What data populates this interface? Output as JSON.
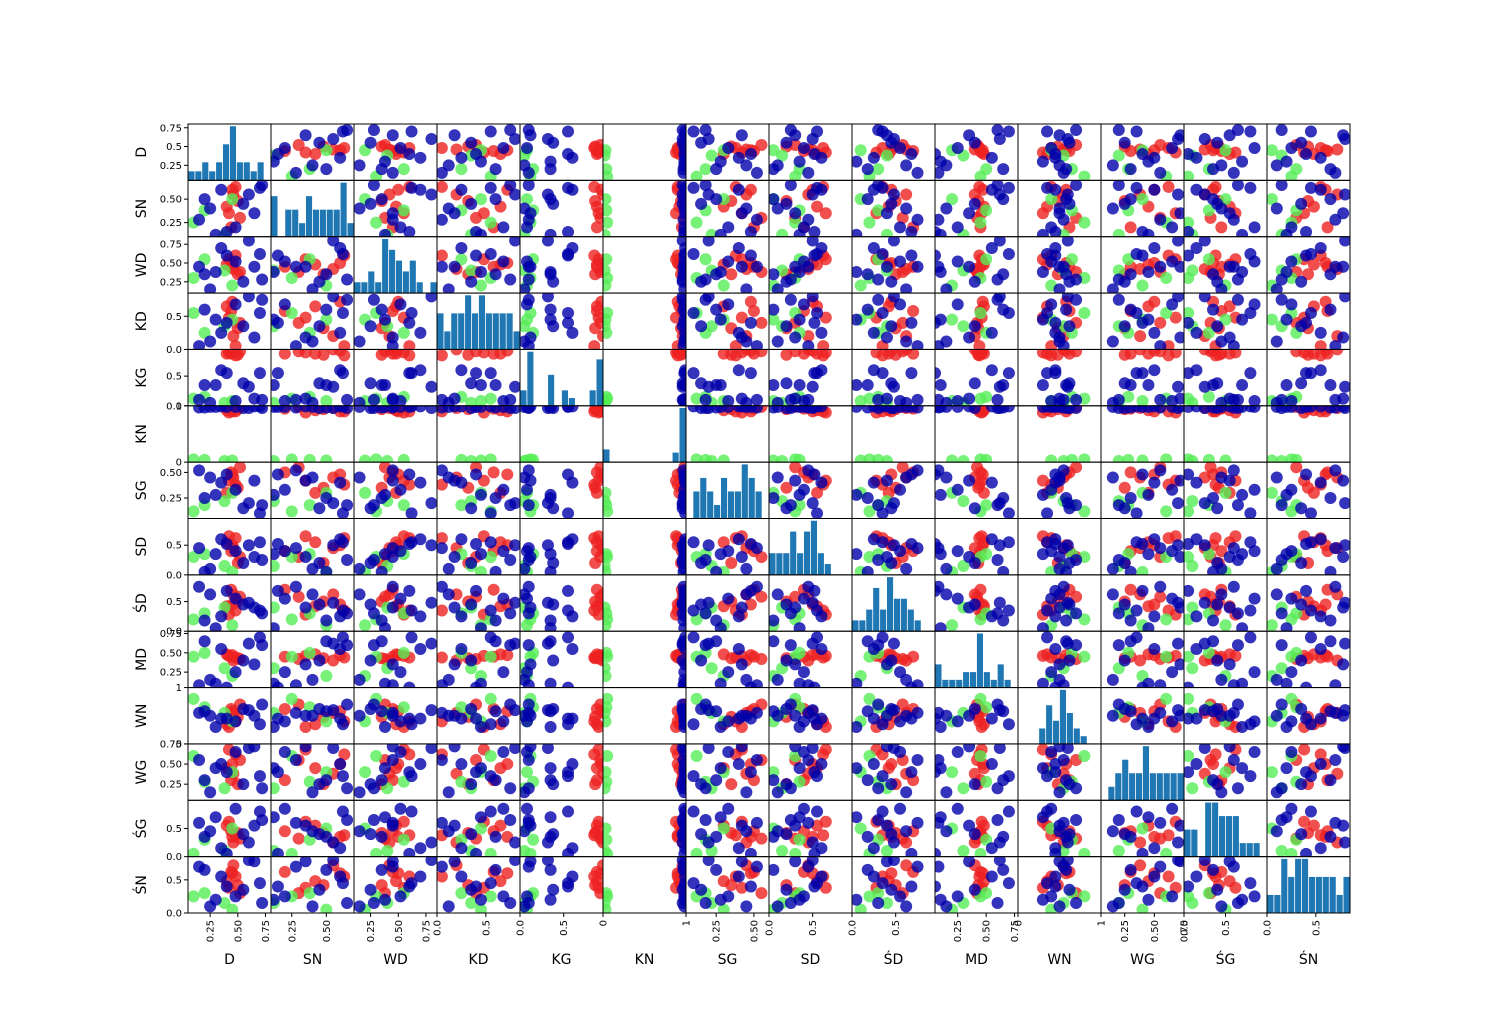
{
  "chart_data": {
    "type": "scatter",
    "title": "",
    "variables": [
      "D",
      "SN",
      "WD",
      "KD",
      "KG",
      "KN",
      "SG",
      "SD",
      "ŚD",
      "MD",
      "WN",
      "WG",
      "ŚG",
      "ŚN"
    ],
    "diagonal": "histogram",
    "histogram_color": "#1f77b4",
    "point_groups": [
      {
        "name": "",
        "color": "#ee2222"
      },
      {
        "name": "",
        "color": "#55ee55"
      },
      {
        "name": "",
        "color": "#0000aa"
      }
    ],
    "axis_ranges": [
      [
        0.05,
        0.8
      ],
      [
        0.1,
        0.7
      ],
      [
        0.1,
        0.85
      ],
      [
        0.0,
        0.85
      ],
      [
        0.0,
        0.95
      ],
      [
        0.0,
        1.0
      ],
      [
        0.05,
        0.6
      ],
      [
        0.0,
        0.95
      ],
      [
        0.0,
        0.95
      ],
      [
        0.05,
        0.78
      ],
      [
        0.0,
        1.0
      ],
      [
        0.05,
        0.75
      ],
      [
        0.0,
        1.0
      ],
      [
        0.0,
        0.85
      ]
    ],
    "y_ticks": [
      {
        "values": [
          0.25,
          0.5,
          0.75
        ],
        "labels": [
          "0.25",
          "0.5",
          "0.75"
        ]
      },
      {
        "values": [
          0.25,
          0.5
        ],
        "labels": [
          "0.25",
          "0.50"
        ]
      },
      {
        "values": [
          0.25,
          0.5,
          0.75
        ],
        "labels": [
          "0.25",
          "0.50",
          "0.75"
        ]
      },
      {
        "values": [
          0.0,
          0.5
        ],
        "labels": [
          "0.0",
          "0.5"
        ]
      },
      {
        "values": [
          0.0,
          0.5
        ],
        "labels": [
          "0.0",
          "0.5"
        ]
      },
      {
        "values": [
          0,
          1
        ],
        "labels": [
          "0",
          "1"
        ]
      },
      {
        "values": [
          0.25,
          0.5
        ],
        "labels": [
          "0.25",
          "0.50"
        ]
      },
      {
        "values": [
          0.0,
          0.5
        ],
        "labels": [
          "0.0",
          "0.5"
        ]
      },
      {
        "values": [
          0.0,
          0.5
        ],
        "labels": [
          "0.0",
          "0.5"
        ]
      },
      {
        "values": [
          0.25,
          0.5,
          0.75
        ],
        "labels": [
          "0.25",
          "0.50",
          "0.75"
        ]
      },
      {
        "values": [
          0,
          1
        ],
        "labels": [
          "0",
          "1"
        ]
      },
      {
        "values": [
          0.25,
          0.5,
          0.75
        ],
        "labels": [
          "0.25",
          "0.50",
          "0.75"
        ]
      },
      {
        "values": [
          0.0,
          0.5
        ],
        "labels": [
          "0.0",
          "0.5"
        ]
      },
      {
        "values": [
          0.0,
          0.5
        ],
        "labels": [
          "0.0",
          "0.5"
        ]
      }
    ],
    "x_ticks": [
      {
        "values": [
          0.25,
          0.5,
          0.75
        ],
        "labels": [
          "0.25",
          "0.50",
          "0.75"
        ]
      },
      {
        "values": [
          0.25,
          0.5
        ],
        "labels": [
          "0.25",
          "0.50"
        ]
      },
      {
        "values": [
          0.25,
          0.5,
          0.75
        ],
        "labels": [
          "0.25",
          "0.50",
          "0.75"
        ]
      },
      {
        "values": [
          0.0,
          0.5
        ],
        "labels": [
          "0.0",
          "0.5"
        ]
      },
      {
        "values": [
          0.0,
          0.5
        ],
        "labels": [
          "0.0",
          "0.5"
        ]
      },
      {
        "values": [
          0,
          1
        ],
        "labels": [
          "0",
          "1"
        ]
      },
      {
        "values": [
          0.25,
          0.5
        ],
        "labels": [
          "0.25",
          "0.50"
        ]
      },
      {
        "values": [
          0.0,
          0.5
        ],
        "labels": [
          "0.0",
          "0.5"
        ]
      },
      {
        "values": [
          0.0,
          0.5
        ],
        "labels": [
          "0.0",
          "0.5"
        ]
      },
      {
        "values": [
          0.25,
          0.5,
          0.75
        ],
        "labels": [
          "0.25",
          "0.50",
          "0.75"
        ]
      },
      {
        "values": [
          0,
          1
        ],
        "labels": [
          "0",
          "1"
        ]
      },
      {
        "values": [
          0.25,
          0.5,
          0.75
        ],
        "labels": [
          "0.25",
          "0.50",
          "0.75"
        ]
      },
      {
        "values": [
          0.0,
          0.5
        ],
        "labels": [
          "0.0",
          "0.5"
        ]
      },
      {
        "values": [
          0.0,
          0.5
        ],
        "labels": [
          "0.0",
          "0.5"
        ]
      }
    ],
    "observations": [
      {
        "group": 0,
        "values": [
          0.44,
          0.2,
          0.45,
          0.58,
          0.88,
          0.95,
          0.5,
          0.4,
          0.7,
          0.45,
          0.62,
          0.3,
          0.45,
          0.62
        ]
      },
      {
        "group": 0,
        "values": [
          0.48,
          0.63,
          0.6,
          0.05,
          0.85,
          0.9,
          0.38,
          0.62,
          0.35,
          0.44,
          0.4,
          0.62,
          0.38,
          0.55
        ]
      },
      {
        "group": 0,
        "values": [
          0.52,
          0.3,
          0.38,
          0.4,
          0.92,
          0.98,
          0.55,
          0.3,
          0.58,
          0.42,
          0.7,
          0.55,
          0.32,
          0.3
        ]
      },
      {
        "group": 0,
        "values": [
          0.4,
          0.42,
          0.48,
          0.65,
          0.88,
          0.92,
          0.3,
          0.55,
          0.42,
          0.48,
          0.35,
          0.45,
          0.55,
          0.48
        ]
      },
      {
        "group": 0,
        "values": [
          0.46,
          0.55,
          0.42,
          0.2,
          0.95,
          0.96,
          0.45,
          0.45,
          0.62,
          0.4,
          0.55,
          0.38,
          0.25,
          0.72
        ]
      },
      {
        "group": 0,
        "values": [
          0.42,
          0.35,
          0.55,
          0.48,
          0.9,
          0.88,
          0.42,
          0.65,
          0.28,
          0.46,
          0.3,
          0.68,
          0.62,
          0.38
        ]
      },
      {
        "group": 0,
        "values": [
          0.5,
          0.48,
          0.35,
          0.32,
          0.86,
          0.94,
          0.35,
          0.2,
          0.5,
          0.43,
          0.48,
          0.25,
          0.42,
          0.42
        ]
      },
      {
        "group": 0,
        "values": [
          0.45,
          0.6,
          0.5,
          0.72,
          0.93,
          0.9,
          0.48,
          0.5,
          0.45,
          0.47,
          0.58,
          0.5,
          0.35,
          0.6
        ]
      },
      {
        "group": 1,
        "values": [
          0.38,
          0.12,
          0.4,
          0.35,
          0.05,
          0.02,
          0.22,
          0.15,
          0.4,
          0.3,
          0.55,
          0.2,
          0.1,
          0.15
        ]
      },
      {
        "group": 1,
        "values": [
          0.1,
          0.25,
          0.3,
          0.55,
          0.12,
          0.05,
          0.12,
          0.3,
          0.2,
          0.45,
          0.8,
          0.6,
          0.05,
          0.25
        ]
      },
      {
        "group": 1,
        "values": [
          0.45,
          0.5,
          0.2,
          0.45,
          0.08,
          0.03,
          0.3,
          0.05,
          0.1,
          0.2,
          0.4,
          0.4,
          0.5,
          0.05
        ]
      },
      {
        "group": 1,
        "values": [
          0.2,
          0.38,
          0.55,
          0.25,
          0.15,
          0.04,
          0.18,
          0.35,
          0.3,
          0.5,
          0.65,
          0.28,
          0.3,
          0.3
        ]
      },
      {
        "group": 2,
        "values": [
          0.3,
          0.12,
          0.38,
          0.45,
          0.35,
          0.98,
          0.28,
          0.35,
          0.05,
          0.1,
          0.3,
          0.45,
          0.7,
          0.2
        ]
      },
      {
        "group": 2,
        "values": [
          0.6,
          0.55,
          0.8,
          0.8,
          0.32,
          0.96,
          0.2,
          0.5,
          0.48,
          0.62,
          0.6,
          0.7,
          0.25,
          0.8
        ]
      },
      {
        "group": 2,
        "values": [
          0.25,
          0.4,
          0.15,
          0.12,
          0.05,
          0.98,
          0.45,
          0.1,
          0.62,
          0.15,
          0.5,
          0.15,
          0.45,
          0.1
        ]
      },
      {
        "group": 2,
        "values": [
          0.7,
          0.62,
          0.62,
          0.55,
          0.55,
          0.99,
          0.1,
          0.55,
          0.35,
          0.7,
          0.35,
          0.35,
          0.8,
          0.45
        ]
      },
      {
        "group": 2,
        "values": [
          0.15,
          0.28,
          0.45,
          0.05,
          0.1,
          0.97,
          0.52,
          0.45,
          0.75,
          0.08,
          0.55,
          0.55,
          0.6,
          0.7
        ]
      },
      {
        "group": 2,
        "values": [
          0.55,
          0.45,
          0.25,
          0.35,
          0.38,
          0.96,
          0.15,
          0.2,
          0.45,
          0.4,
          0.62,
          0.25,
          0.4,
          0.35
        ]
      },
      {
        "group": 2,
        "values": [
          0.35,
          0.6,
          0.7,
          0.25,
          0.6,
          0.99,
          0.4,
          0.6,
          0.25,
          0.55,
          0.45,
          0.5,
          0.15,
          0.55
        ]
      },
      {
        "group": 2,
        "values": [
          0.48,
          0.2,
          0.52,
          0.68,
          0.08,
          0.98,
          0.33,
          0.4,
          0.55,
          0.25,
          0.4,
          0.65,
          0.85,
          0.25
        ]
      },
      {
        "group": 2,
        "values": [
          0.2,
          0.5,
          0.35,
          0.6,
          0.35,
          0.97,
          0.25,
          0.05,
          0.18,
          0.65,
          0.58,
          0.3,
          0.35,
          0.65
        ]
      },
      {
        "group": 2,
        "values": [
          0.65,
          0.35,
          0.45,
          0.18,
          0.12,
          0.99,
          0.42,
          0.3,
          0.4,
          0.35,
          0.5,
          0.72,
          0.55,
          0.78
        ]
      },
      {
        "group": 2,
        "values": [
          0.4,
          0.15,
          0.6,
          0.4,
          0.55,
          0.98,
          0.48,
          0.52,
          0.68,
          0.05,
          0.45,
          0.4,
          0.05,
          0.4
        ]
      },
      {
        "group": 2,
        "values": [
          0.72,
          0.65,
          0.28,
          0.75,
          0.1,
          0.96,
          0.18,
          0.25,
          0.3,
          0.6,
          0.7,
          0.2,
          0.65,
          0.15
        ]
      }
    ]
  }
}
